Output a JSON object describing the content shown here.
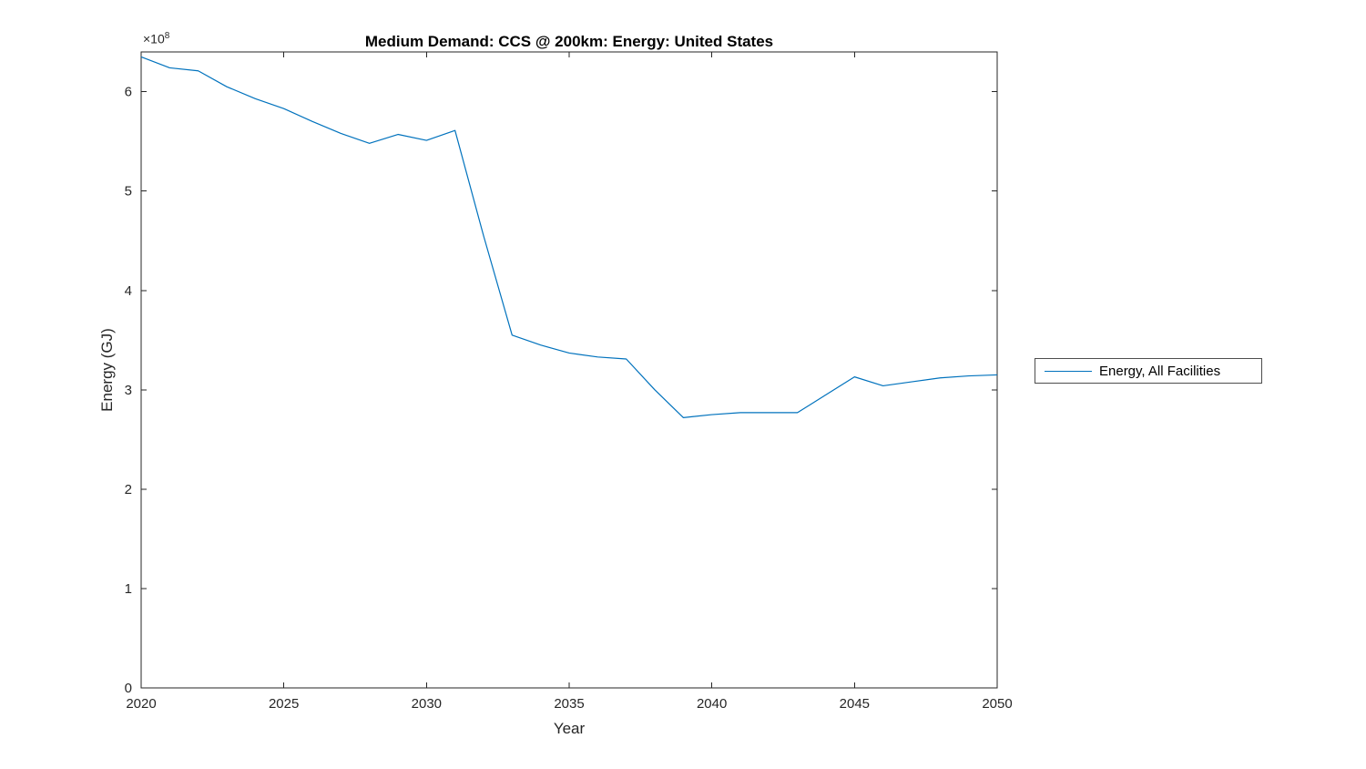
{
  "chart_data": {
    "type": "line",
    "title": "Medium Demand: CCS @ 200km: Energy: United States",
    "xlabel": "Year",
    "ylabel": "Energy (GJ)",
    "y_exponent_base": "×10",
    "y_exponent_power": "8",
    "x": [
      2020,
      2021,
      2022,
      2023,
      2024,
      2025,
      2026,
      2027,
      2028,
      2029,
      2030,
      2031,
      2032,
      2033,
      2034,
      2035,
      2036,
      2037,
      2038,
      2039,
      2040,
      2041,
      2042,
      2043,
      2044,
      2045,
      2046,
      2047,
      2048,
      2049,
      2050
    ],
    "series": [
      {
        "name": "Energy, All Facilities",
        "color": "#0072BD",
        "values": [
          635000000.0,
          624000000.0,
          621000000.0,
          605000000.0,
          593000000.0,
          583000000.0,
          570000000.0,
          558000000.0,
          548000000.0,
          557000000.0,
          551000000.0,
          561000000.0,
          455000000.0,
          355000000.0,
          345000000.0,
          337000000.0,
          333000000.0,
          331000000.0,
          300000000.0,
          272000000.0,
          275000000.0,
          277000000.0,
          277000000.0,
          277000000.0,
          295000000.0,
          313000000.0,
          304000000.0,
          308000000.0,
          312000000.0,
          314000000.0,
          315000000.0
        ]
      }
    ],
    "xlim": [
      2020,
      2050
    ],
    "ylim": [
      0,
      640000000.0
    ],
    "xticks": {
      "values": [
        2020,
        2025,
        2030,
        2035,
        2040,
        2045,
        2050
      ],
      "labels": [
        "2020",
        "2025",
        "2030",
        "2035",
        "2040",
        "2045",
        "2050"
      ]
    },
    "yticks": {
      "values": [
        0,
        100000000.0,
        200000000.0,
        300000000.0,
        400000000.0,
        500000000.0,
        600000000.0
      ],
      "labels": [
        "0",
        "1",
        "2",
        "3",
        "4",
        "5",
        "6"
      ]
    },
    "grid": false,
    "legend_position": "outside-right",
    "axis_color": "#262626",
    "tick_label_color": "#262626"
  }
}
